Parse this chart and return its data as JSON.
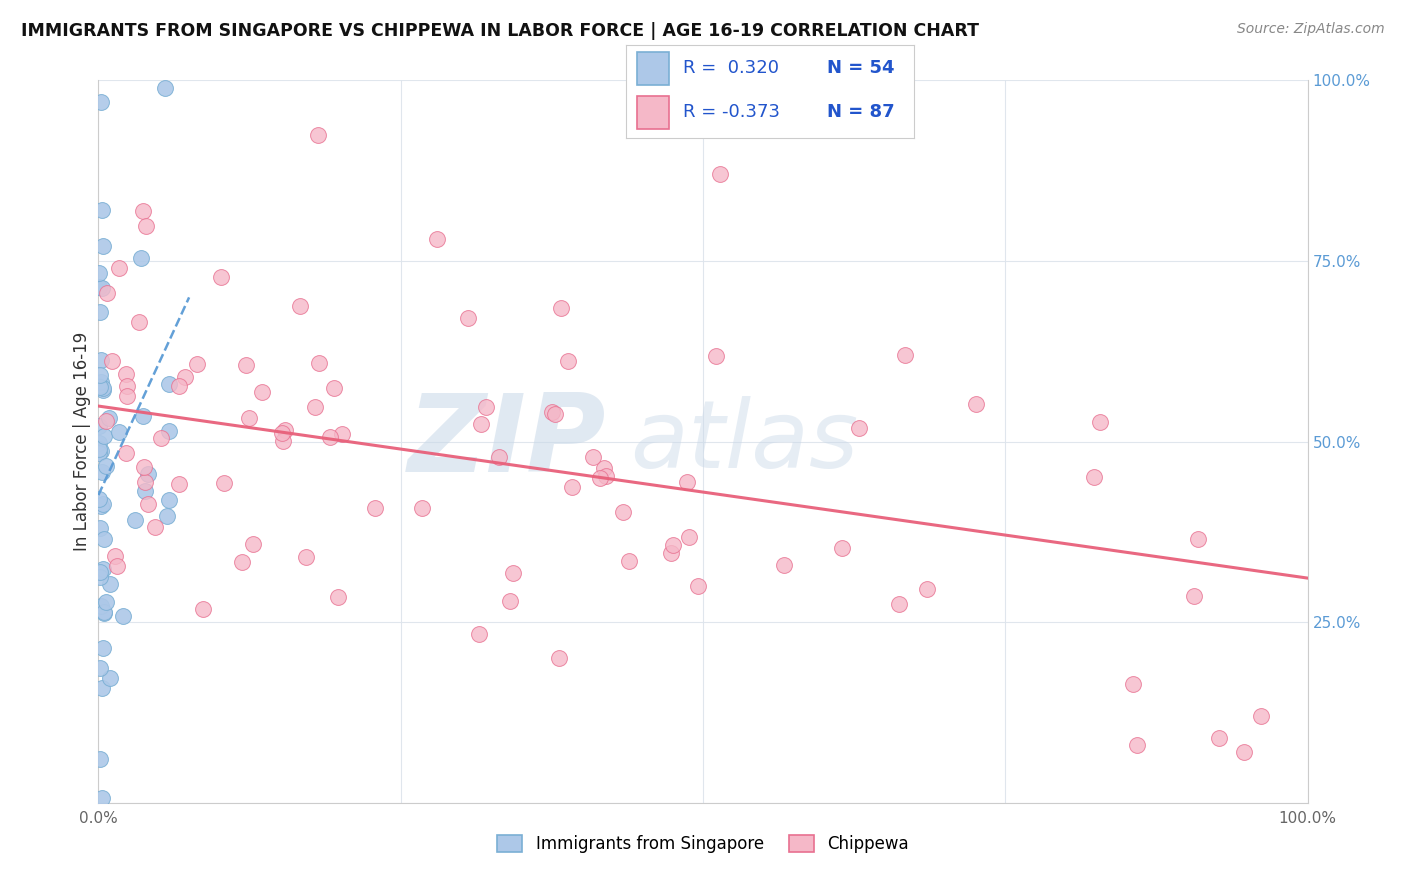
{
  "title": "IMMIGRANTS FROM SINGAPORE VS CHIPPEWA IN LABOR FORCE | AGE 16-19 CORRELATION CHART",
  "source": "Source: ZipAtlas.com",
  "ylabel": "In Labor Force | Age 16-19",
  "xlim": [
    0,
    1.0
  ],
  "ylim": [
    0,
    1.0
  ],
  "r_singapore": 0.32,
  "n_singapore": 54,
  "r_chippewa": -0.373,
  "n_chippewa": 87,
  "color_singapore_face": "#adc8e8",
  "color_singapore_edge": "#7aafd4",
  "color_chippewa_face": "#f5b8c8",
  "color_chippewa_edge": "#e87090",
  "color_trendline_singapore": "#5b9bd5",
  "color_trendline_chippewa": "#e8607a",
  "color_right_axis": "#5b9bd5",
  "background_color": "#ffffff",
  "grid_color": "#dde4ec",
  "watermark_zip_color": "#c8d8e8",
  "watermark_atlas_color": "#c8d8e8"
}
